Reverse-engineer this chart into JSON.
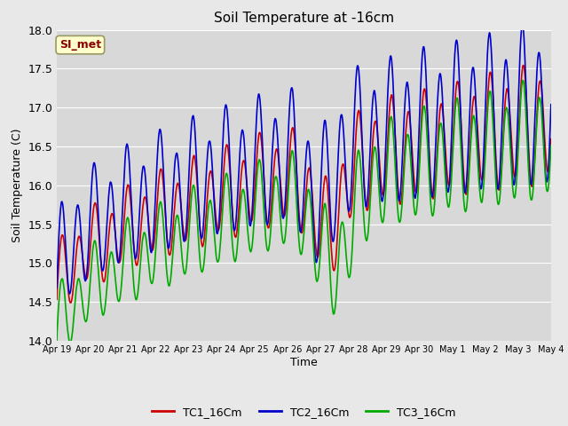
{
  "title": "Soil Temperature at -16cm",
  "xlabel": "Time",
  "ylabel": "Soil Temperature (C)",
  "ylim": [
    14.0,
    18.0
  ],
  "yticks": [
    14.0,
    14.5,
    15.0,
    15.5,
    16.0,
    16.5,
    17.0,
    17.5,
    18.0
  ],
  "x_tick_labels": [
    "Apr 19",
    "Apr 20",
    "Apr 21",
    "Apr 22",
    "Apr 23",
    "Apr 24",
    "Apr 25",
    "Apr 26",
    "Apr 27",
    "Apr 28",
    "Apr 29",
    "Apr 30",
    "May 1",
    "May 2",
    "May 3",
    "May 4"
  ],
  "colors": {
    "TC1": "#cc0000",
    "TC2": "#0000cc",
    "TC3": "#00aa00"
  },
  "legend_labels": [
    "TC1_16Cm",
    "TC2_16Cm",
    "TC3_16Cm"
  ],
  "fig_bg_color": "#e8e8e8",
  "plot_bg_color": "#d8d8d8",
  "annotation_text": "SI_met",
  "annotation_color": "#8b0000",
  "annotation_bg": "#ffffcc",
  "annotation_edge": "#999966",
  "grid_color": "#ffffff",
  "linewidth": 1.2
}
